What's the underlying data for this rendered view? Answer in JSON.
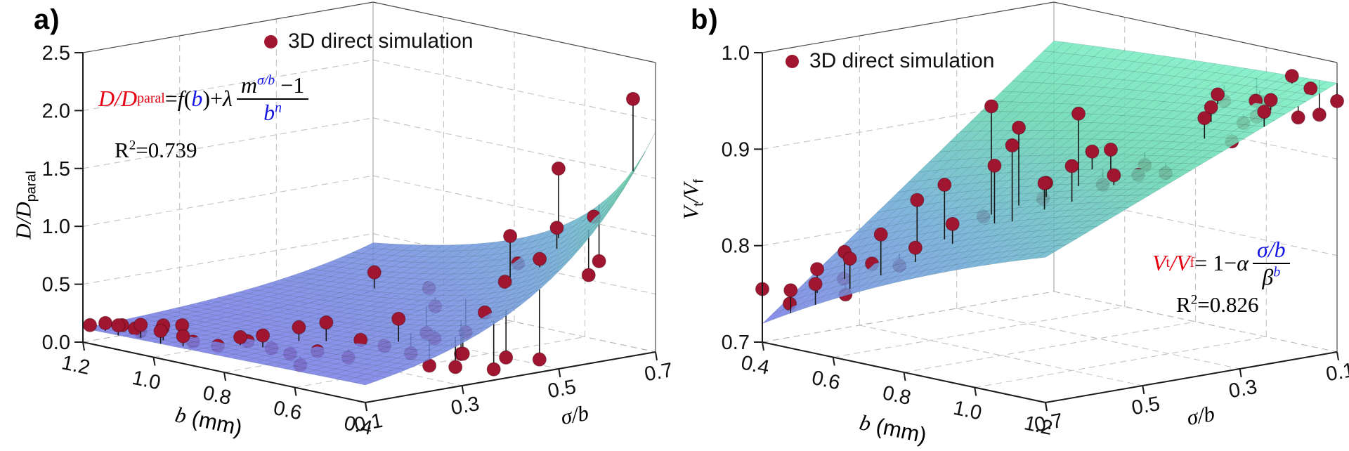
{
  "figure": {
    "colors": {
      "formula_red": "#e60012",
      "formula_blue": "#1414e6",
      "point": "#a01630",
      "surface_low": "#7b7de8",
      "surface_high": "#74eec0"
    },
    "panels": [
      {
        "label": "a)",
        "legend": {
          "text": "3D direct simulation",
          "marker": "filled-circle"
        },
        "formula": {
          "lhs": "D/D",
          "lhs_sub": "paral",
          "eq": "=",
          "func": "f",
          "lp": "(",
          "arg": "b",
          "rp": ")+",
          "lam": "λ",
          "num_m": "m",
          "num_exp": "σ/b",
          "num_tail": " −1",
          "den_b": "b",
          "den_n": "n"
        },
        "r2": {
          "base": "R",
          "exp": "2",
          "val": "=0.739"
        },
        "axis_titles": {
          "x_var": "b",
          "x_unit": " (mm)",
          "y": "σ/b",
          "z_main": "D/D",
          "z_sub": "paral"
        }
      },
      {
        "label": "b)",
        "legend": {
          "text": "3D direct simulation",
          "marker": "filled-circle"
        },
        "formula": {
          "v1": "V",
          "v1_sub": "t",
          "slash": "/",
          "v2": "V",
          "v2_sub": "f",
          "eq": " = 1− ",
          "alpha": "α",
          "num": "σ/b",
          "den_beta": "β",
          "den_exp": "b"
        },
        "r2": {
          "base": "R",
          "exp": "2",
          "val": "=0.826"
        },
        "axis_titles": {
          "x_var": "b",
          "x_unit": " (mm)",
          "y": "σ/b",
          "z_v1": "V",
          "z_v1sub": "t",
          "z_slash": "/",
          "z_v2": "V",
          "z_v2sub": "f"
        }
      }
    ]
  },
  "chart_data": [
    {
      "id": "a",
      "type": "scatter",
      "plot_kind": "3d-surface-with-scatter",
      "legend": "3D direct simulation",
      "x": {
        "label": "b (mm)",
        "range": [
          1.2,
          0.4
        ],
        "ticks": [
          "1.2",
          "1.0",
          "0.8",
          "0.6",
          "0.4"
        ]
      },
      "y": {
        "label": "σ/b",
        "range": [
          0.1,
          0.7
        ],
        "ticks": [
          "0.1",
          "0.3",
          "0.5",
          "0.7"
        ]
      },
      "z": {
        "label": "D/D_paral",
        "range": [
          0,
          2.5
        ],
        "ticks": [
          "0.0",
          "0.5",
          "1.0",
          "1.5",
          "2.0",
          "2.5"
        ]
      },
      "fit": {
        "formula_text": "D/D_paral = f(b) + λ·(m^(σ/b) − 1)/b^n",
        "r_squared": 0.739,
        "model": "exp_ridge",
        "params": {
          "base": 0.12,
          "slope": 0.04,
          "bref": 1.2,
          "c": 0.027,
          "k": 4,
          "sref": 0.1,
          "n": 1.6
        }
      },
      "points_format": [
        "b_mm",
        "sigma_over_b",
        "D_over_Dparal"
      ],
      "points": [
        [
          1.18,
          0.1,
          0.16
        ],
        [
          1.15,
          0.11,
          0.19
        ],
        [
          1.13,
          0.13,
          0.17
        ],
        [
          1.12,
          0.16,
          0.1
        ],
        [
          1.1,
          0.1,
          0.21
        ],
        [
          1.08,
          0.12,
          0.18
        ],
        [
          1.05,
          0.11,
          0.24
        ],
        [
          1.03,
          0.14,
          0.2
        ],
        [
          1.0,
          0.12,
          0.26
        ],
        [
          0.98,
          0.1,
          0.24
        ],
        [
          0.97,
          0.16,
          0.11
        ],
        [
          0.96,
          0.13,
          0.28
        ],
        [
          0.93,
          0.11,
          0.22
        ],
        [
          0.9,
          0.16,
          0.12
        ],
        [
          0.87,
          0.2,
          0.15
        ],
        [
          0.85,
          0.17,
          0.22
        ],
        [
          0.83,
          0.22,
          0.1
        ],
        [
          0.8,
          0.18,
          0.26
        ],
        [
          0.78,
          0.24,
          0.3
        ],
        [
          0.75,
          0.2,
          0.12
        ],
        [
          0.73,
          0.26,
          0.36
        ],
        [
          0.7,
          0.22,
          0.16
        ],
        [
          0.68,
          0.17,
          0.09
        ],
        [
          0.66,
          0.28,
          0.24
        ],
        [
          0.64,
          0.24,
          0.13
        ],
        [
          0.62,
          0.3,
          0.2
        ],
        [
          0.6,
          0.34,
          0.12
        ],
        [
          0.58,
          0.3,
          0.46
        ],
        [
          0.56,
          0.36,
          0.26
        ],
        [
          0.54,
          0.4,
          0.11
        ],
        [
          0.52,
          0.32,
          0.08
        ],
        [
          0.5,
          0.42,
          0.48
        ],
        [
          0.48,
          0.36,
          0.18
        ],
        [
          0.46,
          0.33,
          0.1
        ],
        [
          0.44,
          0.42,
          0.13
        ],
        [
          0.42,
          0.38,
          0.07
        ],
        [
          0.4,
          0.46,
          0.11
        ],
        [
          0.95,
          0.52,
          0.46
        ],
        [
          0.85,
          0.56,
          0.36
        ],
        [
          0.75,
          0.5,
          0.31
        ],
        [
          0.72,
          0.46,
          0.13
        ],
        [
          0.65,
          0.49,
          0.16
        ],
        [
          0.62,
          0.56,
          0.96
        ],
        [
          0.58,
          0.52,
          0.62
        ],
        [
          0.55,
          0.57,
          0.8
        ],
        [
          0.68,
          0.62,
          0.64
        ],
        [
          0.57,
          0.62,
          1.02
        ],
        [
          0.48,
          0.62,
          0.67
        ],
        [
          0.62,
          0.66,
          1.47
        ],
        [
          0.52,
          0.66,
          1.12
        ],
        [
          0.45,
          0.69,
          2.16
        ],
        [
          0.56,
          0.7,
          0.68
        ]
      ]
    },
    {
      "id": "b",
      "type": "scatter",
      "plot_kind": "3d-surface-with-scatter",
      "legend": "3D direct simulation",
      "x": {
        "label": "b (mm)",
        "range": [
          0.4,
          1.2
        ],
        "ticks": [
          "0.4",
          "0.6",
          "0.8",
          "1.0",
          "1.2"
        ]
      },
      "y": {
        "label": "σ/b",
        "range": [
          0.7,
          0.1
        ],
        "ticks": [
          "0.7",
          "0.5",
          "0.3",
          "0.1"
        ]
      },
      "z": {
        "label": "V_t/V_f",
        "range": [
          0.7,
          1.0
        ],
        "ticks": [
          "0.7",
          "0.8",
          "0.9",
          "1.0"
        ]
      },
      "fit": {
        "formula_text": "V_t/V_f = 1 − α·(σ/b)/β^b",
        "r_squared": 0.826,
        "model": "plane_decay",
        "params": {
          "alpha": 0.55,
          "beta": 2.2
        }
      },
      "points_format": [
        "b_mm",
        "sigma_over_b",
        "Vt_over_Vf"
      ],
      "points": [
        [
          0.4,
          0.7,
          0.755
        ],
        [
          0.45,
          0.68,
          0.742
        ],
        [
          0.5,
          0.66,
          0.78
        ],
        [
          0.52,
          0.62,
          0.768
        ],
        [
          0.55,
          0.64,
          0.8
        ],
        [
          0.58,
          0.66,
          0.76
        ],
        [
          0.6,
          0.62,
          0.79
        ],
        [
          0.65,
          0.6,
          0.79
        ],
        [
          0.48,
          0.7,
          0.76
        ],
        [
          0.55,
          0.7,
          0.772
        ],
        [
          0.62,
          0.68,
          0.802
        ],
        [
          0.68,
          0.66,
          0.83
        ],
        [
          0.75,
          0.64,
          0.82
        ],
        [
          0.7,
          0.6,
          0.862
        ],
        [
          0.75,
          0.58,
          0.88
        ],
        [
          0.8,
          0.6,
          0.845
        ],
        [
          0.85,
          0.55,
          0.905
        ],
        [
          0.9,
          0.55,
          0.93
        ],
        [
          0.95,
          0.52,
          0.892
        ],
        [
          0.8,
          0.52,
          0.96
        ],
        [
          0.85,
          0.5,
          0.94
        ],
        [
          0.9,
          0.48,
          0.885
        ],
        [
          1.0,
          0.5,
          0.912
        ],
        [
          0.95,
          0.45,
          0.958
        ],
        [
          1.0,
          0.42,
          0.922
        ],
        [
          1.05,
          0.45,
          0.902
        ],
        [
          0.92,
          0.4,
          0.912
        ],
        [
          0.75,
          0.5,
          0.84
        ],
        [
          0.85,
          0.45,
          0.862
        ],
        [
          0.95,
          0.4,
          0.88
        ],
        [
          1.05,
          0.4,
          0.898
        ],
        [
          1.0,
          0.35,
          0.9
        ],
        [
          1.1,
          0.38,
          0.902
        ],
        [
          1.1,
          0.3,
          0.952
        ],
        [
          1.15,
          0.28,
          0.93
        ],
        [
          1.2,
          0.25,
          0.962
        ],
        [
          1.05,
          0.25,
          0.955
        ],
        [
          1.1,
          0.22,
          0.94
        ],
        [
          1.15,
          0.2,
          0.966
        ],
        [
          1.2,
          0.18,
          0.95
        ],
        [
          1.0,
          0.2,
          0.96
        ],
        [
          1.05,
          0.15,
          0.952
        ],
        [
          1.1,
          0.12,
          0.98
        ],
        [
          1.15,
          0.1,
          0.942
        ],
        [
          1.2,
          0.1,
          0.96
        ],
        [
          1.18,
          0.14,
          0.975
        ],
        [
          0.95,
          0.15,
          0.945
        ],
        [
          1.0,
          0.12,
          0.93
        ],
        [
          1.08,
          0.18,
          0.958
        ]
      ]
    }
  ]
}
